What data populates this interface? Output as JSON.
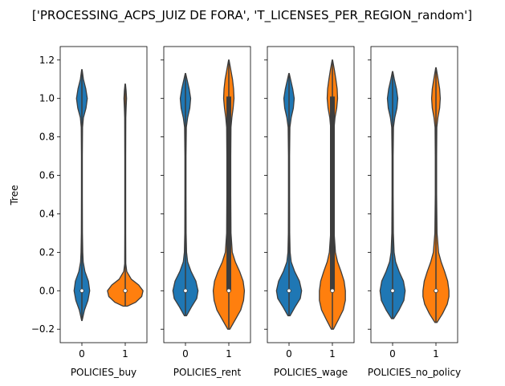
{
  "chart_data": {
    "title": "['PROCESSING_ACPS_JUIZ DE FORA', 'T_LICENSES_PER_REGION_random']",
    "type": "violin",
    "ylabel": "Tree",
    "ylim": [
      -0.27,
      1.27
    ],
    "yticks": [
      -0.2,
      0.0,
      0.2,
      0.4,
      0.6,
      0.8,
      1.0,
      1.2
    ],
    "ytick_labels": [
      "−0.2",
      "0.0",
      "0.2",
      "0.4",
      "0.6",
      "0.8",
      "1.0",
      "1.2"
    ],
    "categories": [
      "0",
      "1"
    ],
    "colors": {
      "0": "#1f77b4",
      "1": "#ff7f0e"
    },
    "sharey": true,
    "panels": [
      {
        "xlabel": "POLICIES_buy",
        "violins": [
          {
            "category": "0",
            "min": -0.155,
            "max": 1.15,
            "median": 0.0,
            "q1": 0.0,
            "q3": 0.0,
            "profile": [
              [
                -0.155,
                0.01
              ],
              [
                -0.1,
                0.12
              ],
              [
                -0.05,
                0.28
              ],
              [
                0.0,
                0.36
              ],
              [
                0.05,
                0.3
              ],
              [
                0.1,
                0.14
              ],
              [
                0.15,
                0.06
              ],
              [
                0.2,
                0.04
              ],
              [
                0.3,
                0.025
              ],
              [
                0.5,
                0.02
              ],
              [
                0.7,
                0.02
              ],
              [
                0.85,
                0.03
              ],
              [
                0.9,
                0.07
              ],
              [
                0.95,
                0.19
              ],
              [
                1.0,
                0.25
              ],
              [
                1.05,
                0.18
              ],
              [
                1.1,
                0.07
              ],
              [
                1.15,
                0.01
              ]
            ]
          },
          {
            "category": "1",
            "min": -0.08,
            "max": 1.075,
            "median": 0.0,
            "q1": 0.0,
            "q3": 0.0,
            "profile": [
              [
                -0.08,
                0.1
              ],
              [
                -0.06,
                0.48
              ],
              [
                -0.03,
                0.76
              ],
              [
                0.0,
                0.82
              ],
              [
                0.03,
                0.62
              ],
              [
                0.06,
                0.28
              ],
              [
                0.1,
                0.07
              ],
              [
                0.14,
                0.025
              ],
              [
                0.3,
                0.02
              ],
              [
                0.5,
                0.02
              ],
              [
                0.7,
                0.02
              ],
              [
                0.9,
                0.025
              ],
              [
                0.95,
                0.04
              ],
              [
                1.0,
                0.06
              ],
              [
                1.04,
                0.04
              ],
              [
                1.075,
                0.01
              ]
            ]
          }
        ]
      },
      {
        "xlabel": "POLICIES_rent",
        "violins": [
          {
            "category": "0",
            "min": -0.13,
            "max": 1.13,
            "median": 0.0,
            "q1": 0.0,
            "q3": 0.0,
            "profile": [
              [
                -0.13,
                0.05
              ],
              [
                -0.08,
                0.3
              ],
              [
                -0.04,
                0.52
              ],
              [
                0.0,
                0.58
              ],
              [
                0.05,
                0.48
              ],
              [
                0.1,
                0.26
              ],
              [
                0.15,
                0.1
              ],
              [
                0.2,
                0.05
              ],
              [
                0.3,
                0.03
              ],
              [
                0.5,
                0.025
              ],
              [
                0.7,
                0.025
              ],
              [
                0.85,
                0.04
              ],
              [
                0.9,
                0.1
              ],
              [
                0.95,
                0.2
              ],
              [
                1.0,
                0.24
              ],
              [
                1.05,
                0.17
              ],
              [
                1.1,
                0.07
              ],
              [
                1.13,
                0.01
              ]
            ]
          },
          {
            "category": "1",
            "min": -0.2,
            "max": 1.2,
            "median": 0.0,
            "q1": 0.0,
            "q3": 1.01,
            "profile": [
              [
                -0.2,
                0.05
              ],
              [
                -0.15,
                0.3
              ],
              [
                -0.1,
                0.55
              ],
              [
                -0.05,
                0.68
              ],
              [
                0.0,
                0.72
              ],
              [
                0.05,
                0.66
              ],
              [
                0.1,
                0.5
              ],
              [
                0.15,
                0.3
              ],
              [
                0.2,
                0.16
              ],
              [
                0.3,
                0.1
              ],
              [
                0.5,
                0.09
              ],
              [
                0.7,
                0.09
              ],
              [
                0.85,
                0.1
              ],
              [
                0.9,
                0.14
              ],
              [
                0.95,
                0.2
              ],
              [
                1.0,
                0.24
              ],
              [
                1.05,
                0.22
              ],
              [
                1.1,
                0.17
              ],
              [
                1.15,
                0.09
              ],
              [
                1.2,
                0.01
              ]
            ]
          }
        ]
      },
      {
        "xlabel": "POLICIES_wage",
        "violins": [
          {
            "category": "0",
            "min": -0.13,
            "max": 1.13,
            "median": 0.0,
            "q1": 0.0,
            "q3": 0.0,
            "profile": [
              [
                -0.13,
                0.05
              ],
              [
                -0.08,
                0.3
              ],
              [
                -0.04,
                0.52
              ],
              [
                0.0,
                0.58
              ],
              [
                0.05,
                0.48
              ],
              [
                0.1,
                0.26
              ],
              [
                0.15,
                0.1
              ],
              [
                0.2,
                0.05
              ],
              [
                0.3,
                0.03
              ],
              [
                0.5,
                0.025
              ],
              [
                0.7,
                0.025
              ],
              [
                0.85,
                0.04
              ],
              [
                0.9,
                0.1
              ],
              [
                0.95,
                0.2
              ],
              [
                1.0,
                0.24
              ],
              [
                1.05,
                0.17
              ],
              [
                1.1,
                0.07
              ],
              [
                1.13,
                0.01
              ]
            ]
          },
          {
            "category": "1",
            "min": -0.2,
            "max": 1.2,
            "median": 0.0,
            "q1": 0.0,
            "q3": 1.01,
            "profile": [
              [
                -0.2,
                0.05
              ],
              [
                -0.15,
                0.28
              ],
              [
                -0.1,
                0.5
              ],
              [
                -0.05,
                0.6
              ],
              [
                0.0,
                0.6
              ],
              [
                0.05,
                0.54
              ],
              [
                0.1,
                0.4
              ],
              [
                0.15,
                0.24
              ],
              [
                0.2,
                0.14
              ],
              [
                0.3,
                0.08
              ],
              [
                0.5,
                0.06
              ],
              [
                0.7,
                0.06
              ],
              [
                0.85,
                0.08
              ],
              [
                0.9,
                0.12
              ],
              [
                0.95,
                0.2
              ],
              [
                1.0,
                0.24
              ],
              [
                1.05,
                0.22
              ],
              [
                1.1,
                0.16
              ],
              [
                1.15,
                0.09
              ],
              [
                1.2,
                0.01
              ]
            ]
          }
        ]
      },
      {
        "xlabel": "POLICIES_no_policy",
        "violins": [
          {
            "category": "0",
            "min": -0.145,
            "max": 1.14,
            "median": 0.0,
            "q1": 0.0,
            "q3": 0.0,
            "profile": [
              [
                -0.145,
                0.05
              ],
              [
                -0.1,
                0.3
              ],
              [
                -0.05,
                0.52
              ],
              [
                0.0,
                0.58
              ],
              [
                0.05,
                0.5
              ],
              [
                0.1,
                0.3
              ],
              [
                0.15,
                0.14
              ],
              [
                0.2,
                0.07
              ],
              [
                0.3,
                0.035
              ],
              [
                0.5,
                0.025
              ],
              [
                0.7,
                0.025
              ],
              [
                0.85,
                0.04
              ],
              [
                0.9,
                0.1
              ],
              [
                0.95,
                0.2
              ],
              [
                1.0,
                0.24
              ],
              [
                1.05,
                0.18
              ],
              [
                1.1,
                0.08
              ],
              [
                1.14,
                0.01
              ]
            ]
          },
          {
            "category": "1",
            "min": -0.165,
            "max": 1.16,
            "median": 0.0,
            "q1": 0.0,
            "q3": 0.0,
            "profile": [
              [
                -0.165,
                0.05
              ],
              [
                -0.12,
                0.3
              ],
              [
                -0.07,
                0.52
              ],
              [
                -0.03,
                0.6
              ],
              [
                0.0,
                0.6
              ],
              [
                0.05,
                0.54
              ],
              [
                0.1,
                0.4
              ],
              [
                0.15,
                0.24
              ],
              [
                0.2,
                0.12
              ],
              [
                0.3,
                0.05
              ],
              [
                0.5,
                0.03
              ],
              [
                0.7,
                0.03
              ],
              [
                0.85,
                0.04
              ],
              [
                0.9,
                0.09
              ],
              [
                0.95,
                0.17
              ],
              [
                1.0,
                0.2
              ],
              [
                1.05,
                0.17
              ],
              [
                1.1,
                0.1
              ],
              [
                1.16,
                0.01
              ]
            ]
          }
        ]
      }
    ]
  }
}
